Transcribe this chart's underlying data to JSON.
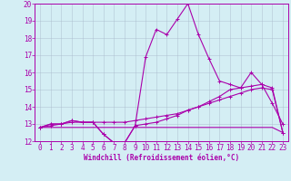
{
  "xlabel": "Windchill (Refroidissement éolien,°C)",
  "x": [
    0,
    1,
    2,
    3,
    4,
    5,
    6,
    7,
    8,
    9,
    10,
    11,
    12,
    13,
    14,
    15,
    16,
    17,
    18,
    19,
    20,
    21,
    22,
    23
  ],
  "line1": [
    12.8,
    13.0,
    13.0,
    13.2,
    13.1,
    13.1,
    12.4,
    11.9,
    11.9,
    12.9,
    16.9,
    18.5,
    18.2,
    19.1,
    20.0,
    18.2,
    16.8,
    15.5,
    15.3,
    15.1,
    16.0,
    15.3,
    14.2,
    13.0
  ],
  "line2": [
    12.8,
    13.0,
    13.0,
    13.2,
    13.1,
    13.1,
    12.4,
    11.9,
    11.9,
    12.9,
    13.0,
    13.1,
    13.3,
    13.5,
    13.8,
    14.0,
    14.3,
    14.6,
    15.0,
    15.1,
    15.2,
    15.3,
    15.1,
    12.5
  ],
  "line3": [
    12.8,
    12.9,
    13.0,
    13.1,
    13.1,
    13.1,
    13.1,
    13.1,
    13.1,
    13.2,
    13.3,
    13.4,
    13.5,
    13.6,
    13.8,
    14.0,
    14.2,
    14.4,
    14.6,
    14.8,
    15.0,
    15.1,
    15.0,
    12.5
  ],
  "line4": [
    12.8,
    12.8,
    12.8,
    12.8,
    12.8,
    12.8,
    12.8,
    12.8,
    12.8,
    12.8,
    12.8,
    12.8,
    12.8,
    12.8,
    12.8,
    12.8,
    12.8,
    12.8,
    12.8,
    12.8,
    12.8,
    12.8,
    12.8,
    12.5
  ],
  "line_color": "#aa00aa",
  "bg_color": "#d4eef4",
  "grid_color": "#aabbcc",
  "ylim": [
    12,
    20
  ],
  "yticks": [
    12,
    13,
    14,
    15,
    16,
    17,
    18,
    19,
    20
  ],
  "xticks": [
    0,
    1,
    2,
    3,
    4,
    5,
    6,
    7,
    8,
    9,
    10,
    11,
    12,
    13,
    14,
    15,
    16,
    17,
    18,
    19,
    20,
    21,
    22,
    23
  ],
  "xlabel_fontsize": 5.5,
  "tick_fontsize": 5.5
}
